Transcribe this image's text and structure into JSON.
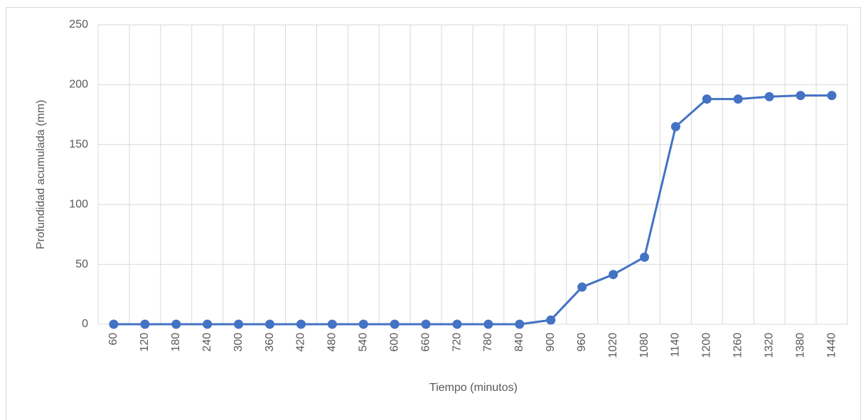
{
  "chart_data": {
    "type": "line",
    "x_label": "Tiempo (minutos)",
    "y_label": "Profundidad acumulada (mm)",
    "categories": [
      "60",
      "120",
      "180",
      "240",
      "300",
      "360",
      "420",
      "480",
      "540",
      "600",
      "660",
      "720",
      "780",
      "840",
      "900",
      "960",
      "1020",
      "1080",
      "1140",
      "1200",
      "1260",
      "1320",
      "1380",
      "1440"
    ],
    "series": [
      {
        "name": "Profundidad acumulada",
        "color": "#4472c4",
        "values": [
          0,
          0,
          0,
          0,
          0,
          0,
          0,
          0,
          0,
          0,
          0,
          0,
          0,
          0,
          3.5,
          31,
          41.5,
          56,
          165,
          188,
          188,
          190,
          191,
          191
        ]
      }
    ],
    "ylim": [
      0,
      250
    ],
    "yticks": [
      0,
      50,
      100,
      150,
      200,
      250
    ],
    "grid": true,
    "legend": false
  }
}
